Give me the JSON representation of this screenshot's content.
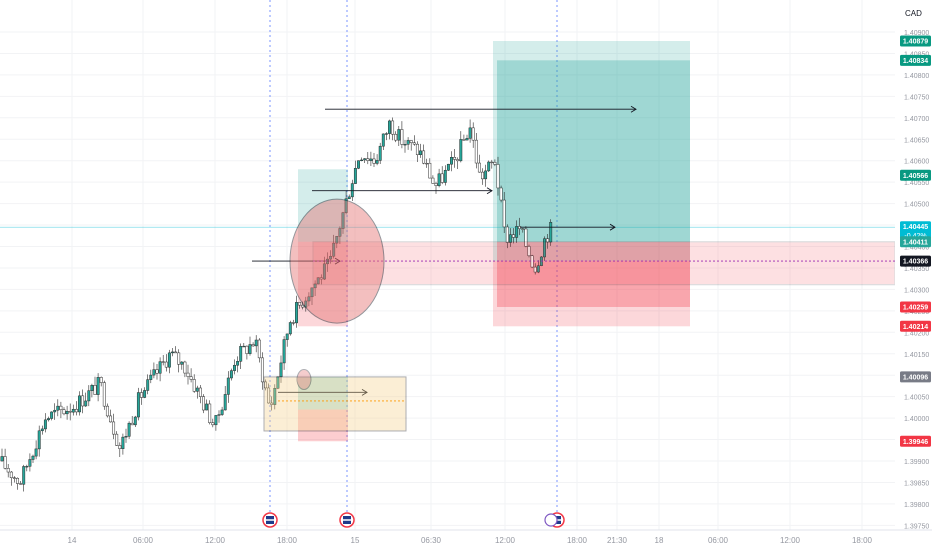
{
  "currency_label": "CAD",
  "colors": {
    "up": "#26a69a",
    "down": "#ffffff",
    "wick": "#2b2b2b",
    "profit_zone": "#26a69a",
    "loss_zone": "#f23645",
    "session_line": "#5b7cff",
    "grid": "#f2f3f5",
    "axis_text": "#9598a1"
  },
  "price_axis": {
    "ticks": [
      "1.40900",
      "1.40850",
      "1.40800",
      "1.40750",
      "1.40700",
      "1.40650",
      "1.40600",
      "1.40550",
      "1.40500",
      "1.40450",
      "1.40400",
      "1.40350",
      "1.40300",
      "1.40250",
      "1.40200",
      "1.40150",
      "1.40100",
      "1.40050",
      "1.40000",
      "1.39950",
      "1.39900",
      "1.39850",
      "1.39800",
      "1.39750"
    ]
  },
  "price_badges": [
    {
      "id": "badge-target-upper",
      "text": "1.40879",
      "value": 1.40879,
      "color": "#089981"
    },
    {
      "id": "badge-target-lower",
      "text": "1.40834",
      "value": 1.40834,
      "color": "#089981"
    },
    {
      "id": "badge-level-566",
      "text": "1.40566",
      "value": 1.40566,
      "color": "#089981"
    },
    {
      "id": "badge-current",
      "text": "1.40445",
      "sub": "-0.42%",
      "value": 1.40445,
      "color": "#00bcd4"
    },
    {
      "id": "badge-level-411",
      "text": "1.40411",
      "value": 1.40411,
      "color": "#26a69a"
    },
    {
      "id": "badge-level-366",
      "text": "1.40366",
      "value": 1.40366,
      "color": "#131722"
    },
    {
      "id": "badge-stop-259",
      "text": "1.40259",
      "value": 1.40259,
      "color": "#f23645"
    },
    {
      "id": "badge-stop-214",
      "text": "1.40214",
      "value": 1.40214,
      "color": "#f23645"
    },
    {
      "id": "badge-level-096",
      "text": "1.40096",
      "value": 1.40096,
      "color": "#787b86"
    },
    {
      "id": "badge-level-946",
      "text": "1.39946",
      "value": 1.39946,
      "color": "#f23645"
    }
  ],
  "time_axis": {
    "labels": [
      "14",
      "06:00",
      "12:00",
      "18:00",
      "15",
      "06:30",
      "12:00",
      "18:00",
      "21:30",
      "18",
      "06:00",
      "12:00",
      "18:00"
    ]
  },
  "event_markers": [
    {
      "name": "us-flag-event-1"
    },
    {
      "name": "us-flag-event-2"
    },
    {
      "name": "us-flag-event-3"
    }
  ],
  "chart_data": {
    "type": "candlestick",
    "instrument_currency": "CAD",
    "ylim": [
      1.3972,
      1.4092
    ],
    "annotations": [
      {
        "kind": "long-position",
        "entry": 1.40411,
        "target": 1.40834,
        "stop": 1.40259
      },
      {
        "kind": "long-position",
        "entry": 1.40366,
        "target": 1.40879,
        "stop": 1.40214
      },
      {
        "kind": "long-position",
        "entry": 1.4002,
        "target": 1.40096,
        "stop": 1.39946
      },
      {
        "kind": "horizontal-ray",
        "price": 1.4072
      },
      {
        "kind": "horizontal-ray",
        "price": 1.4053
      },
      {
        "kind": "horizontal-ray",
        "price": 1.40445
      },
      {
        "kind": "horizontal-ray",
        "price": 1.40366
      },
      {
        "kind": "horizontal-ray",
        "price": 1.4006
      },
      {
        "kind": "ellipse-highlight",
        "price_center": 1.40366
      },
      {
        "kind": "rectangle-zone",
        "from": 1.40366,
        "to": 1.40311
      }
    ]
  }
}
